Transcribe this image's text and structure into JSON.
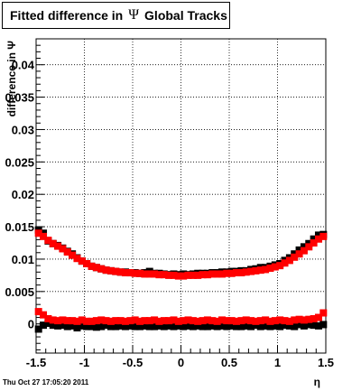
{
  "title": {
    "prefix": "Fitted difference in",
    "symbol": "Ψ",
    "suffix": "Global Tracks"
  },
  "footer_text": "Thu Oct 27 17:05:20 2011",
  "chart_data": {
    "type": "scatter",
    "title": "Fitted difference in Ψ Global Tracks",
    "xlabel": "η",
    "ylabel": "difference in Ψ",
    "xlim": [
      -1.5,
      1.5
    ],
    "ylim": [
      -0.0045,
      0.044
    ],
    "grid": true,
    "x_ticks": [
      -1.5,
      -1,
      -0.5,
      0,
      0.5,
      1,
      1.5
    ],
    "x_tick_labels": [
      "-1.5",
      "-1",
      "-0.5",
      "0",
      "0.5",
      "1",
      "1.5"
    ],
    "y_ticks": [
      0,
      0.005,
      0.01,
      0.015,
      0.02,
      0.025,
      0.03,
      0.035,
      0.04
    ],
    "y_tick_labels": [
      "0",
      "0.005",
      "0.01",
      "0.015",
      "0.02",
      "0.025",
      "0.03",
      "0.035",
      "0.04"
    ],
    "series": [
      {
        "color": "#000000",
        "marker": "square",
        "x": [
          -1.475,
          -1.425,
          -1.375,
          -1.325,
          -1.275,
          -1.225,
          -1.175,
          -1.125,
          -1.075,
          -1.025,
          -0.975,
          -0.925,
          -0.875,
          -0.825,
          -0.775,
          -0.725,
          -0.675,
          -0.625,
          -0.575,
          -0.525,
          -0.475,
          -0.425,
          -0.375,
          -0.325,
          -0.275,
          -0.225,
          -0.175,
          -0.125,
          -0.075,
          -0.025,
          0.025,
          0.075,
          0.125,
          0.175,
          0.225,
          0.275,
          0.325,
          0.375,
          0.425,
          0.475,
          0.525,
          0.575,
          0.625,
          0.675,
          0.725,
          0.775,
          0.825,
          0.875,
          0.925,
          0.975,
          1.025,
          1.075,
          1.125,
          1.175,
          1.225,
          1.275,
          1.325,
          1.375,
          1.425,
          1.475,
          -1.475,
          -1.425,
          -1.375,
          -1.325,
          -1.275,
          -1.225,
          -1.175,
          -1.125,
          -1.075,
          -1.025,
          -0.975,
          -0.925,
          -0.875,
          -0.825,
          -0.775,
          -0.725,
          -0.675,
          -0.625,
          -0.575,
          -0.525,
          -0.475,
          -0.425,
          -0.375,
          -0.325,
          -0.275,
          -0.225,
          -0.175,
          -0.125,
          -0.075,
          -0.025,
          0.025,
          0.075,
          0.125,
          0.175,
          0.225,
          0.275,
          0.325,
          0.375,
          0.425,
          0.475,
          0.525,
          0.575,
          0.625,
          0.675,
          0.725,
          0.775,
          0.825,
          0.875,
          0.925,
          0.975,
          1.025,
          1.075,
          1.125,
          1.175,
          1.225,
          1.275,
          1.325,
          1.375,
          1.425,
          1.475
        ],
        "y": [
          0.0145,
          0.014,
          0.0128,
          0.0124,
          0.0121,
          0.0117,
          0.0112,
          0.0108,
          0.0102,
          0.0097,
          0.0093,
          0.0089,
          0.0087,
          0.0085,
          0.0083,
          0.0082,
          0.0081,
          0.008,
          0.008,
          0.0079,
          0.0079,
          0.0078,
          0.0079,
          0.0081,
          0.0078,
          0.0078,
          0.0077,
          0.0076,
          0.0077,
          0.0076,
          0.0077,
          0.0076,
          0.0077,
          0.0078,
          0.0078,
          0.0078,
          0.0079,
          0.0079,
          0.008,
          0.008,
          0.0081,
          0.0081,
          0.0082,
          0.0082,
          0.0084,
          0.0085,
          0.0087,
          0.0087,
          0.0089,
          0.0091,
          0.0093,
          0.0098,
          0.0102,
          0.0108,
          0.0114,
          0.0119,
          0.0124,
          0.0131,
          0.0137,
          0.0138,
          -0.0008,
          -0.0002,
          0.0001,
          -0.0002,
          -0.0003,
          -0.0002,
          -0.0004,
          -0.0003,
          -0.0006,
          -0.0003,
          -0.0004,
          -0.0004,
          -0.0005,
          -0.0004,
          -0.0002,
          -0.0004,
          -0.0004,
          -0.0003,
          -0.0004,
          -0.0003,
          -0.0004,
          -0.0004,
          -0.0003,
          -0.0004,
          -0.0004,
          -0.0003,
          -0.0004,
          -0.0003,
          -0.0004,
          -0.0003,
          -0.0004,
          -0.0003,
          -0.0004,
          -0.0003,
          -0.0004,
          -0.0004,
          -0.0003,
          -0.0004,
          -0.0003,
          -0.0004,
          -0.0003,
          -0.0004,
          -0.0004,
          -0.0003,
          -0.0004,
          -0.0002,
          -0.0004,
          -0.0003,
          -0.0004,
          -0.0003,
          -0.0004,
          -0.0002,
          -0.0003,
          -0.0004,
          -0.0001,
          -0.0003,
          -0.0001,
          -0.0002,
          -0.0003,
          -0.0001
        ]
      },
      {
        "color": "#ff0000",
        "marker": "square",
        "x": [
          -1.475,
          -1.425,
          -1.375,
          -1.325,
          -1.275,
          -1.225,
          -1.175,
          -1.125,
          -1.075,
          -1.025,
          -0.975,
          -0.925,
          -0.875,
          -0.825,
          -0.775,
          -0.725,
          -0.675,
          -0.625,
          -0.575,
          -0.525,
          -0.475,
          -0.425,
          -0.375,
          -0.325,
          -0.275,
          -0.225,
          -0.175,
          -0.125,
          -0.075,
          -0.025,
          0.025,
          0.075,
          0.125,
          0.175,
          0.225,
          0.275,
          0.325,
          0.375,
          0.425,
          0.475,
          0.525,
          0.575,
          0.625,
          0.675,
          0.725,
          0.775,
          0.825,
          0.875,
          0.925,
          0.975,
          1.025,
          1.075,
          1.125,
          1.175,
          1.225,
          1.275,
          1.325,
          1.375,
          1.425,
          1.475,
          -1.475,
          -1.425,
          -1.375,
          -1.325,
          -1.275,
          -1.225,
          -1.175,
          -1.125,
          -1.075,
          -1.025,
          -0.975,
          -0.925,
          -0.875,
          -0.825,
          -0.775,
          -0.725,
          -0.675,
          -0.625,
          -0.575,
          -0.525,
          -0.475,
          -0.425,
          -0.375,
          -0.325,
          -0.275,
          -0.225,
          -0.175,
          -0.125,
          -0.075,
          -0.025,
          0.025,
          0.075,
          0.125,
          0.175,
          0.225,
          0.275,
          0.325,
          0.375,
          0.425,
          0.475,
          0.525,
          0.575,
          0.625,
          0.675,
          0.725,
          0.775,
          0.825,
          0.875,
          0.925,
          0.975,
          1.025,
          1.075,
          1.125,
          1.175,
          1.225,
          1.275,
          1.325,
          1.375,
          1.425,
          1.475
        ],
        "y": [
          0.014,
          0.0135,
          0.0129,
          0.0124,
          0.012,
          0.0116,
          0.0111,
          0.0106,
          0.0101,
          0.0097,
          0.0093,
          0.0089,
          0.0087,
          0.0085,
          0.0083,
          0.0082,
          0.0081,
          0.008,
          0.0079,
          0.0079,
          0.0078,
          0.0078,
          0.0077,
          0.0077,
          0.0077,
          0.0076,
          0.0076,
          0.0075,
          0.0075,
          0.0074,
          0.0074,
          0.0075,
          0.0075,
          0.0075,
          0.0076,
          0.0076,
          0.0077,
          0.0077,
          0.0077,
          0.0078,
          0.0078,
          0.0079,
          0.0079,
          0.008,
          0.0081,
          0.0082,
          0.0083,
          0.0084,
          0.0086,
          0.0088,
          0.009,
          0.0094,
          0.0098,
          0.0103,
          0.0108,
          0.0113,
          0.0119,
          0.0125,
          0.0131,
          0.0135,
          0.0019,
          0.0014,
          0.0008,
          0.0006,
          0.0005,
          0.0006,
          0.0005,
          0.0005,
          0.0004,
          0.0006,
          0.0004,
          0.0004,
          0.0005,
          0.0006,
          0.0005,
          0.0004,
          0.0005,
          0.0005,
          0.0004,
          0.0005,
          0.0006,
          0.0004,
          0.0005,
          0.0005,
          0.0006,
          0.0004,
          0.0005,
          0.0005,
          0.0006,
          0.0004,
          0.0005,
          0.0006,
          0.0005,
          0.0004,
          0.0005,
          0.0006,
          0.0005,
          0.0004,
          0.0006,
          0.0005,
          0.0005,
          0.0004,
          0.0005,
          0.0006,
          0.0005,
          0.0004,
          0.0005,
          0.0006,
          0.0004,
          0.0005,
          0.0006,
          0.0005,
          0.0004,
          0.0006,
          0.0007,
          0.0006,
          0.0007,
          0.0008,
          0.001,
          0.0017
        ]
      }
    ]
  }
}
